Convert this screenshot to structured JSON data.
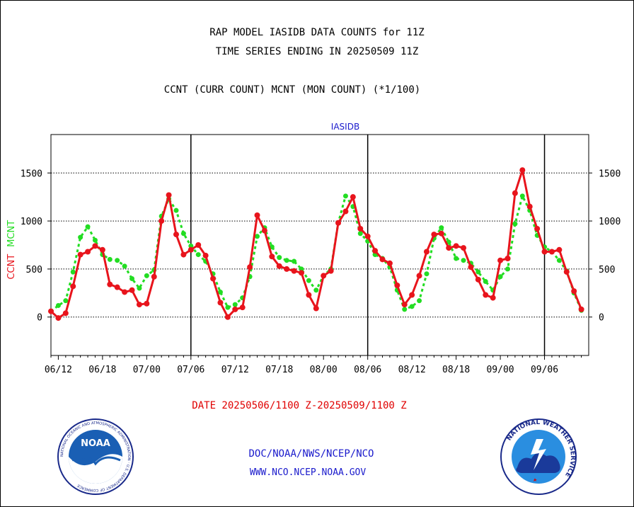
{
  "header": {
    "title_line1": "RAP MODEL IASIDB DATA COUNTS for 11Z",
    "title_line2": "TIME SERIES ENDING IN 20250509 11Z",
    "subtitle": "CCNT (CURR COUNT) MCNT (MON COUNT) (*1/100)"
  },
  "footer": {
    "date_range": "DATE 20250506/1100 Z-20250509/1100 Z",
    "org": "DOC/NOAA/NWS/NCEP/NCO",
    "url": "WWW.NCO.NCEP.NOAA.GOV"
  },
  "logos": {
    "left_text": "NOAA",
    "left_ring_text": "NATIONAL OCEANIC AND ATMOSPHERIC ADMINISTRATION · U.S. DEPARTMENT OF COMMERCE",
    "right_ring_text": "NATIONAL WEATHER SERVICE"
  },
  "colors": {
    "ccnt": "#e8141c",
    "mcnt": "#22dd22",
    "panel_title": "#1a1acc",
    "axis": "#000000"
  },
  "chart_data": {
    "type": "line",
    "panel_title": "IASIDB",
    "ylabel_left": [
      "CCNT",
      "MCNT"
    ],
    "x_ticks": [
      "06/12",
      "06/18",
      "07/00",
      "07/06",
      "07/12",
      "07/18",
      "08/00",
      "08/06",
      "08/12",
      "08/18",
      "09/00",
      "09/06"
    ],
    "x_range_hours": [
      -1,
      72
    ],
    "y_ticks": [
      0,
      500,
      1000,
      1500
    ],
    "y_tick_labels": [
      "0",
      "500",
      "1000",
      "1500"
    ],
    "ylim": [
      -400,
      1900
    ],
    "day_boundaries_hours": [
      18,
      42,
      66
    ],
    "grid": "horizontal dotted at y ticks",
    "series": [
      {
        "name": "CCNT",
        "color": "#e8141c",
        "style": "solid",
        "points": [
          [
            -1,
            60
          ],
          [
            0,
            -10
          ],
          [
            1,
            40
          ],
          [
            2,
            320
          ],
          [
            3,
            650
          ],
          [
            4,
            680
          ],
          [
            5,
            740
          ],
          [
            6,
            700
          ],
          [
            7,
            340
          ],
          [
            8,
            310
          ],
          [
            9,
            260
          ],
          [
            10,
            280
          ],
          [
            11,
            130
          ],
          [
            12,
            140
          ],
          [
            13,
            420
          ],
          [
            14,
            1000
          ],
          [
            15,
            1270
          ],
          [
            16,
            860
          ],
          [
            17,
            650
          ],
          [
            18,
            700
          ],
          [
            19,
            750
          ],
          [
            20,
            640
          ],
          [
            21,
            400
          ],
          [
            22,
            150
          ],
          [
            23,
            0
          ],
          [
            24,
            80
          ],
          [
            25,
            100
          ],
          [
            26,
            520
          ],
          [
            27,
            1060
          ],
          [
            28,
            900
          ],
          [
            29,
            630
          ],
          [
            30,
            530
          ],
          [
            31,
            500
          ],
          [
            32,
            480
          ],
          [
            33,
            460
          ],
          [
            34,
            230
          ],
          [
            35,
            90
          ],
          [
            36,
            430
          ],
          [
            37,
            480
          ],
          [
            38,
            980
          ],
          [
            39,
            1100
          ],
          [
            40,
            1250
          ],
          [
            41,
            920
          ],
          [
            42,
            840
          ],
          [
            43,
            690
          ],
          [
            44,
            600
          ],
          [
            45,
            560
          ],
          [
            46,
            330
          ],
          [
            47,
            130
          ],
          [
            48,
            230
          ],
          [
            49,
            430
          ],
          [
            50,
            680
          ],
          [
            51,
            860
          ],
          [
            52,
            870
          ],
          [
            53,
            720
          ],
          [
            54,
            740
          ],
          [
            55,
            720
          ],
          [
            56,
            520
          ],
          [
            57,
            390
          ],
          [
            58,
            230
          ],
          [
            59,
            200
          ],
          [
            60,
            590
          ],
          [
            61,
            610
          ],
          [
            62,
            1290
          ],
          [
            63,
            1530
          ],
          [
            64,
            1150
          ],
          [
            65,
            920
          ],
          [
            66,
            680
          ],
          [
            67,
            680
          ],
          [
            68,
            700
          ],
          [
            69,
            470
          ],
          [
            70,
            270
          ],
          [
            71,
            80
          ]
        ]
      },
      {
        "name": "MCNT",
        "color": "#22dd22",
        "style": "dotted",
        "points": [
          [
            -1,
            60
          ],
          [
            0,
            120
          ],
          [
            1,
            170
          ],
          [
            2,
            470
          ],
          [
            3,
            830
          ],
          [
            4,
            940
          ],
          [
            5,
            800
          ],
          [
            6,
            650
          ],
          [
            7,
            600
          ],
          [
            8,
            590
          ],
          [
            9,
            530
          ],
          [
            10,
            400
          ],
          [
            11,
            300
          ],
          [
            12,
            430
          ],
          [
            13,
            490
          ],
          [
            14,
            1050
          ],
          [
            15,
            1230
          ],
          [
            16,
            1110
          ],
          [
            17,
            870
          ],
          [
            18,
            740
          ],
          [
            19,
            650
          ],
          [
            20,
            580
          ],
          [
            21,
            450
          ],
          [
            22,
            260
          ],
          [
            23,
            100
          ],
          [
            24,
            130
          ],
          [
            25,
            200
          ],
          [
            26,
            420
          ],
          [
            27,
            840
          ],
          [
            28,
            930
          ],
          [
            29,
            730
          ],
          [
            30,
            620
          ],
          [
            31,
            590
          ],
          [
            32,
            580
          ],
          [
            33,
            500
          ],
          [
            34,
            380
          ],
          [
            35,
            280
          ],
          [
            36,
            430
          ],
          [
            37,
            500
          ],
          [
            38,
            980
          ],
          [
            39,
            1260
          ],
          [
            40,
            1150
          ],
          [
            41,
            870
          ],
          [
            42,
            790
          ],
          [
            43,
            650
          ],
          [
            44,
            610
          ],
          [
            45,
            520
          ],
          [
            46,
            280
          ],
          [
            47,
            80
          ],
          [
            48,
            110
          ],
          [
            49,
            170
          ],
          [
            50,
            450
          ],
          [
            51,
            820
          ],
          [
            52,
            930
          ],
          [
            53,
            780
          ],
          [
            54,
            610
          ],
          [
            55,
            590
          ],
          [
            56,
            560
          ],
          [
            57,
            470
          ],
          [
            58,
            370
          ],
          [
            59,
            280
          ],
          [
            60,
            420
          ],
          [
            61,
            500
          ],
          [
            62,
            970
          ],
          [
            63,
            1260
          ],
          [
            64,
            1110
          ],
          [
            65,
            850
          ],
          [
            66,
            730
          ],
          [
            67,
            680
          ],
          [
            68,
            590
          ],
          [
            69,
            480
          ],
          [
            70,
            250
          ],
          [
            71,
            70
          ]
        ]
      }
    ]
  }
}
